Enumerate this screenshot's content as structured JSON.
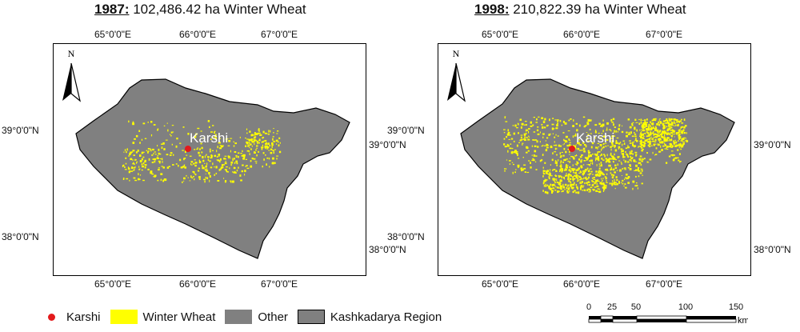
{
  "maps": [
    {
      "year": "1987:",
      "subtitle": " 102,486.42 ha Winter Wheat",
      "city_label": "Karshi",
      "north_label": "N",
      "top_ticks": [
        "65°0'0\"E",
        "66°0'0\"E",
        "67°0'0\"E"
      ],
      "bottom_ticks": [
        "65°0'0\"E",
        "66°0'0\"E",
        "67°0'0\"E"
      ],
      "left_ticks": [
        "39°0'0\"N",
        "38°0'0\"N"
      ],
      "right_ticks": [
        "39°0'0\"N",
        "38°0'0\"N"
      ],
      "wheat_density": "low"
    },
    {
      "year": "1998:",
      "subtitle": " 210,822.39 ha Winter Wheat",
      "city_label": "Karshi",
      "north_label": "N",
      "top_ticks": [
        "65°0'0\"E",
        "66°0'0\"E",
        "67°0'0\"E"
      ],
      "bottom_ticks": [
        "65°0'0\"E",
        "66°0'0\"E",
        "67°0'0\"E"
      ],
      "left_ticks": [
        "39°0'0\"N",
        "38°0'0\"N"
      ],
      "right_ticks": [
        "39°0'0\"N",
        "38°0'0\"N"
      ],
      "wheat_density": "high"
    }
  ],
  "legend": {
    "karshi": "Karshi",
    "wheat": "Winter Wheat",
    "other": "Other",
    "region": "Kashkadarya Region"
  },
  "scale": {
    "labels": [
      "0",
      "25",
      "50",
      "100",
      "150"
    ],
    "unit": "km"
  },
  "colors": {
    "region": "#808080",
    "wheat": "#ffff00",
    "karshi": "#e31a1c",
    "outline": "#000000"
  }
}
